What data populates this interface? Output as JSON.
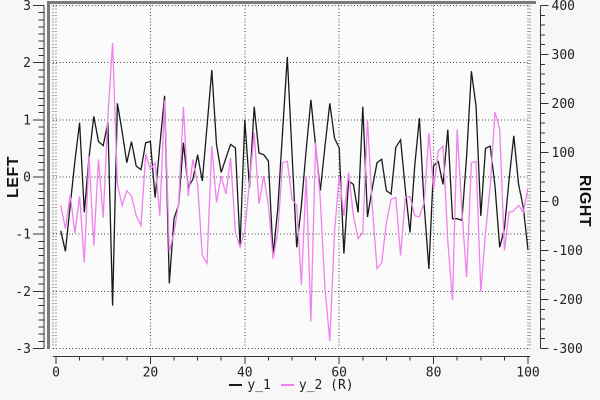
{
  "figure": {
    "background": "#f7f7f7",
    "frame_color": "#7a7a7a",
    "plot_background": "#fbfbfb"
  },
  "chart_data": {
    "type": "line",
    "title": "",
    "grid": {
      "style": "dotted",
      "color": "#444444",
      "on": true
    },
    "x_axis": {
      "label": "",
      "range": [
        0,
        100
      ],
      "tick_values": [
        0,
        20,
        40,
        60,
        80,
        100
      ],
      "minor_step": 5
    },
    "left_axis": {
      "label": "LEFT",
      "range": [
        -3,
        3
      ],
      "tick_values": [
        3,
        2,
        1,
        0,
        -1,
        -2,
        -3
      ],
      "minor_step": 0.125
    },
    "right_axis": {
      "label": "RIGHT",
      "range": [
        -300,
        400
      ],
      "tick_values": [
        400,
        300,
        200,
        100,
        0,
        -100,
        -200,
        -300
      ],
      "minor_step": 20
    },
    "legend": [
      {
        "label": "y_1",
        "color": "#1a1a1a"
      },
      {
        "label": "y_2 (R)",
        "color": "#ee82ee"
      }
    ],
    "series": [
      {
        "name": "y_1",
        "axis": "left",
        "color": "#1a1a1a",
        "x_start": 1,
        "x_step": 1,
        "x_end": 100,
        "values": [
          -0.94,
          -1.3,
          -0.5,
          0.28,
          0.95,
          -0.62,
          0.34,
          1.06,
          0.62,
          0.55,
          0.95,
          -2.25,
          1.29,
          0.8,
          0.25,
          0.62,
          0.19,
          0.13,
          0.6,
          0.62,
          -0.36,
          0.55,
          1.42,
          -1.86,
          -0.73,
          -0.48,
          0.6,
          -0.18,
          -0.04,
          0.39,
          -0.07,
          0.88,
          1.87,
          0.57,
          0.08,
          0.33,
          0.57,
          0.51,
          -1.2,
          1.0,
          -0.18,
          1.23,
          0.42,
          0.39,
          0.28,
          -1.37,
          -0.55,
          0.8,
          2.1,
          0.42,
          -1.23,
          -0.5,
          0.48,
          1.35,
          0.54,
          -0.24,
          0.54,
          1.29,
          0.68,
          0.51,
          -1.34,
          -0.07,
          -0.13,
          -0.62,
          1.23,
          -0.7,
          -0.2,
          0.25,
          0.31,
          -0.24,
          -0.3,
          0.52,
          0.65,
          -0.21,
          -0.97,
          0.19,
          1.03,
          -0.5,
          -1.61,
          0.2,
          0.27,
          -0.13,
          0.83,
          -0.73,
          -0.73,
          -0.76,
          0.36,
          1.85,
          1.23,
          -0.68,
          0.5,
          0.54,
          -0.16,
          -1.23,
          -0.91,
          -0.04,
          0.72,
          -0.13,
          -0.53,
          -1.28
        ]
      },
      {
        "name": "y_2",
        "axis": "right",
        "color": "#ee82ee",
        "x_start": 1,
        "x_step": 1,
        "x_end": 100,
        "values": [
          -7,
          -56,
          13,
          -64,
          11,
          -124,
          92,
          -90,
          86,
          -33,
          174,
          323,
          35,
          -8,
          22,
          11,
          -29,
          -49,
          96,
          65,
          79,
          -29,
          207,
          -103,
          -63,
          -2,
          193,
          11,
          86,
          35,
          -110,
          -126,
          113,
          -2,
          52,
          15,
          89,
          -63,
          -93,
          -60,
          40,
          140,
          -5,
          52,
          -8,
          -117,
          -60,
          79,
          82,
          5,
          -8,
          -170,
          52,
          -245,
          120,
          4,
          -178,
          -285,
          -63,
          52,
          -29,
          59,
          -29,
          -76,
          -63,
          167,
          -8,
          -137,
          -125,
          -43,
          5,
          8,
          -110,
          8,
          10,
          -29,
          -31,
          -2,
          140,
          25,
          103,
          113,
          -80,
          -201,
          147,
          -19,
          -154,
          79,
          82,
          -184,
          -63,
          31,
          183,
          147,
          -100,
          -22,
          -19,
          -8,
          -22,
          28
        ]
      }
    ]
  }
}
